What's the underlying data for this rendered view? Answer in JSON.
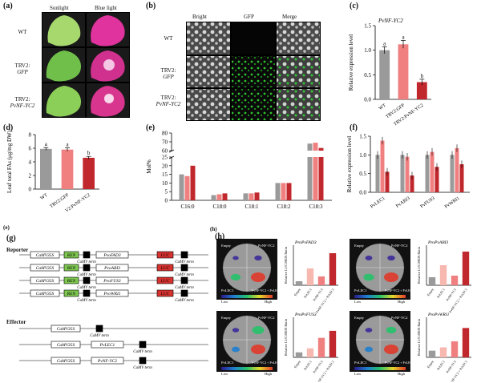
{
  "panels": {
    "a": {
      "label": "(a)",
      "col_headers": [
        "Sunlight",
        "Blue light"
      ],
      "rows": [
        "WT",
        "TRV2:",
        "GFP",
        "TRV2:",
        "PvNF-YC2"
      ]
    },
    "b": {
      "label": "(b)",
      "col_headers": [
        "Bright",
        "GFP",
        "Merge"
      ],
      "rows": [
        "WT",
        "TRV2:",
        "GFP",
        "TRV2:",
        "PvNF-YC2"
      ]
    },
    "c": {
      "label": "(c)",
      "gene_title": "PvNF-YC2",
      "ylabel": "Relative expression level"
    },
    "d": {
      "label": "(d)",
      "ylabel": "Leaf total FAs (μg/mg DW)"
    },
    "e": {
      "label": "(e)",
      "ylabel": "Mol%"
    },
    "f": {
      "label": "(f)",
      "ylabel": "Relative expression level"
    },
    "g": {
      "label": "(g)",
      "section_reporter": "Reporter",
      "section_effector": "Effector",
      "promoter": "CaMV35S",
      "reporter_genes": [
        "PvoFAD3",
        "PvoABI3",
        "PvoFUS3",
        "PvoWRI1"
      ],
      "effector_genes": [
        "PvLEC1",
        "PvNF-YC2"
      ],
      "term": "CaMV term",
      "ren": "REN",
      "luc": "LUC"
    },
    "g_alt_label": "(e)",
    "h": {
      "label": "(h)",
      "plates": [
        {
          "title": "ProPvFAD3",
          "q_tl": "Empty",
          "q_tr": "PvNF-YC2",
          "q_bl": "PvLEC1",
          "q_br": "PvNF-YC2 + PvLEC1"
        },
        {
          "title": "ProPvABI3",
          "q_tl": "Empty",
          "q_tr": "PvNF-YC2",
          "q_bl": "PvLEC1",
          "q_br": "PvNF-YC2 + PvLEC1"
        },
        {
          "title": "ProPvFUS3",
          "q_tl": "Empty",
          "q_tr": "PvNF-YC2",
          "q_bl": "PvLEC1",
          "q_br": "PvNF-YC2 + PvLEC1"
        },
        {
          "title": "ProPvWRI1",
          "q_tl": "Empty",
          "q_tr": "PvNF-YC2",
          "q_bl": "PvLEC1",
          "q_br": "PvNF-YC2 + PvLEC1"
        }
      ],
      "scale_low": "Low",
      "scale_high": "High",
      "ylabel": "Relative LUC/REN Ratio"
    }
  },
  "colors": {
    "gray": "#9a9a9a",
    "pink": "#f08080",
    "red": "#c0282d",
    "lightpink": "#f7b8b0",
    "ren_green": "#7ec850",
    "luc_red": "#d6322f"
  },
  "chart_data": [
    {
      "id": "c",
      "type": "bar",
      "title": "PvNF-YC2",
      "ylabel": "Relative expression level",
      "categories": [
        "WT",
        "TRV2:GFP",
        "TRV2:PvNF-YC2"
      ],
      "values": [
        1.0,
        1.12,
        0.35
      ],
      "errors": [
        0.07,
        0.08,
        0.06
      ],
      "sig": [
        "a",
        "a",
        "b"
      ],
      "ylim": [
        0,
        1.5
      ],
      "yticks": [
        0.0,
        0.5,
        1.0,
        1.5
      ]
    },
    {
      "id": "d",
      "type": "bar",
      "ylabel": "Leaf total FAs (μg/mg DW)",
      "categories": [
        "WT",
        "TRV2:GFP",
        "V2:PvNF-YC2"
      ],
      "values": [
        5.9,
        5.8,
        4.6
      ],
      "errors": [
        0.2,
        0.25,
        0.2
      ],
      "sig": [
        "a",
        "a",
        "b"
      ],
      "ylim": [
        0,
        8
      ],
      "yticks": [
        0,
        2,
        4,
        6,
        8
      ]
    },
    {
      "id": "e",
      "type": "bar",
      "ylabel": "Mol%",
      "categories": [
        "C16:0",
        "C18:0",
        "C18:1",
        "C18:2",
        "C18:3"
      ],
      "series": [
        {
          "values": [
            15,
            3,
            4,
            10,
            68
          ]
        },
        {
          "values": [
            14,
            3.5,
            4,
            10,
            69
          ]
        },
        {
          "values": [
            20,
            4,
            4.5,
            10,
            63
          ]
        }
      ],
      "ylim": [
        0,
        80
      ],
      "yticks": [
        0,
        5,
        10,
        15,
        20,
        25,
        60,
        70,
        80
      ],
      "axis_break": [
        25,
        60
      ]
    },
    {
      "id": "f",
      "type": "bar",
      "ylabel": "Relative expression level",
      "categories": [
        "PvLEC1",
        "PvABI3",
        "PvFUS3",
        "PvWRI1"
      ],
      "series": [
        {
          "values": [
            1.0,
            1.0,
            1.0,
            1.0
          ]
        },
        {
          "values": [
            1.38,
            0.95,
            1.08,
            1.18
          ]
        },
        {
          "values": [
            0.55,
            0.45,
            0.68,
            0.75
          ]
        }
      ],
      "ylim": [
        0,
        1.5
      ],
      "yticks": [
        0.0,
        0.5,
        1.0,
        1.5
      ]
    },
    {
      "id": "h1",
      "type": "bar",
      "title": "ProPvFAD3",
      "ylabel": "Relative LUC/REN Ratio",
      "categories": [
        "Empty",
        "PvLEC1",
        "PvNF-YC2",
        "PvNF-YC2 + PvLEC1"
      ],
      "values": [
        1.0,
        4.2,
        2.2,
        8.0
      ],
      "ylim": [
        0,
        10
      ]
    },
    {
      "id": "h2",
      "type": "bar",
      "title": "ProPvABI3",
      "ylabel": "Relative LUC/REN Ratio",
      "categories": [
        "Empty",
        "PvLEC1",
        "PvNF-YC2",
        "PvNF-YC2 + PvLEC1"
      ],
      "values": [
        1.0,
        2.5,
        1.2,
        4.2
      ],
      "ylim": [
        0,
        5
      ]
    },
    {
      "id": "h3",
      "type": "bar",
      "title": "ProPvFUS3",
      "ylabel": "Relative LUC/REN Ratio",
      "categories": [
        "Empty",
        "PvLEC1",
        "PvNF-YC2",
        "PvNF-YC2 + PvLEC1"
      ],
      "values": [
        1.0,
        1.8,
        3.9,
        5.3
      ],
      "ylim": [
        0,
        8
      ]
    },
    {
      "id": "h4",
      "type": "bar",
      "title": "ProPvWRI1",
      "ylabel": "Relative LUC/REN Ratio",
      "categories": [
        "Empty",
        "PvLEC1",
        "PvNF-YC2",
        "PvNF-YC2 + PvLEC1"
      ],
      "values": [
        1.0,
        1.5,
        2.4,
        4.4
      ],
      "ylim": [
        0,
        6
      ]
    }
  ]
}
